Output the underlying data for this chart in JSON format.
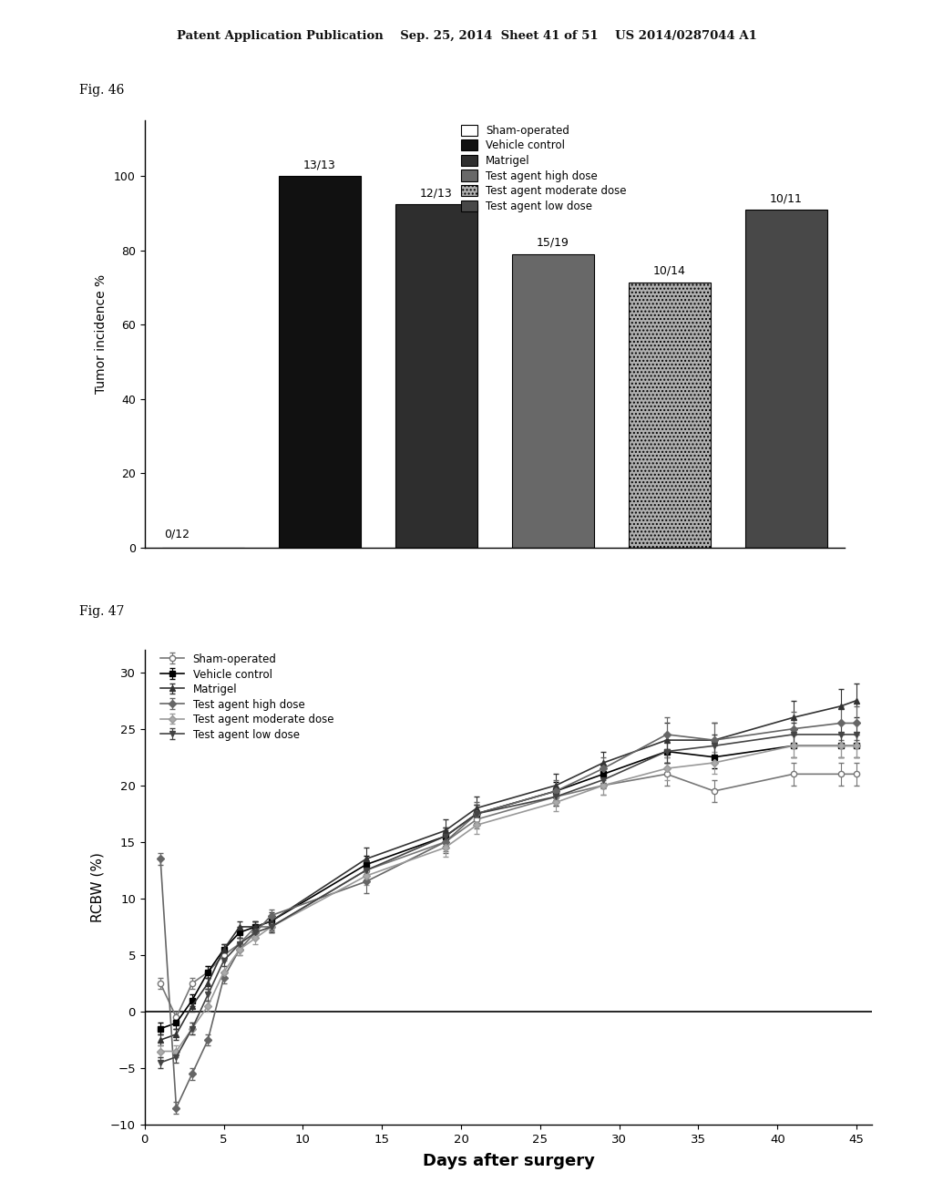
{
  "fig46": {
    "title": "Fig. 46",
    "categories": [
      "Sham-operated",
      "Vehicle control",
      "Matrigel",
      "Test agent high dose",
      "Test agent moderate dose",
      "Test agent low dose"
    ],
    "values": [
      0,
      100,
      92.3,
      78.9,
      71.4,
      90.9
    ],
    "labels": [
      "0/12",
      "13/13",
      "12/13",
      "15/19",
      "10/14",
      "10/11"
    ],
    "bar_colors": [
      "#ffffff",
      "#111111",
      "#2e2e2e",
      "#686868",
      "#b0b0b0",
      "#484848"
    ],
    "bar_edgecolors": [
      "#000000",
      "#000000",
      "#000000",
      "#000000",
      "#000000",
      "#000000"
    ],
    "bar_hatches": [
      null,
      null,
      null,
      null,
      "....",
      null
    ],
    "ylabel": "Tumor incidence %",
    "ylim": [
      0,
      115
    ],
    "yticks": [
      0,
      20,
      40,
      60,
      80,
      100
    ],
    "legend_labels": [
      "Sham-operated",
      "Vehicle control",
      "Matrigel",
      "Test agent high dose",
      "Test agent moderate dose",
      "Test agent low dose"
    ],
    "legend_colors": [
      "#ffffff",
      "#111111",
      "#2e2e2e",
      "#686868",
      "#b0b0b0",
      "#484848"
    ],
    "legend_hatches": [
      null,
      null,
      null,
      null,
      "....",
      null
    ],
    "legend_edgecolors": [
      "#000000",
      "#000000",
      "#000000",
      "#000000",
      "#000000",
      "#000000"
    ]
  },
  "fig47": {
    "title": "Fig. 47",
    "xlabel": "Days after surgery",
    "ylabel": "RCBW (%)",
    "ylim": [
      -10,
      32
    ],
    "yticks": [
      -10,
      -5,
      0,
      5,
      10,
      15,
      20,
      25,
      30
    ],
    "xlim": [
      0,
      46
    ],
    "xticks": [
      0,
      5,
      10,
      15,
      20,
      25,
      30,
      35,
      40,
      45
    ],
    "legend_labels": [
      "Sham-operated",
      "Vehicle control",
      "Matrigel",
      "Test agent high dose",
      "Test agent moderate dose",
      "Test agent low dose"
    ],
    "series": {
      "Sham-operated": {
        "x": [
          1,
          2,
          3,
          4,
          5,
          6,
          7,
          8,
          14,
          19,
          21,
          26,
          29,
          33,
          36,
          41,
          44,
          45
        ],
        "y": [
          2.5,
          -0.5,
          2.5,
          3.5,
          5.0,
          6.0,
          7.5,
          7.5,
          12.5,
          15.0,
          17.0,
          19.0,
          20.0,
          21.0,
          19.5,
          21.0,
          21.0,
          21.0
        ],
        "yerr": [
          0.5,
          0.5,
          0.5,
          0.5,
          0.5,
          0.5,
          0.5,
          0.5,
          0.8,
          0.8,
          0.8,
          0.8,
          0.8,
          1.0,
          1.0,
          1.0,
          1.0,
          1.0
        ]
      },
      "Vehicle control": {
        "x": [
          1,
          2,
          3,
          4,
          5,
          6,
          7,
          8,
          14,
          19,
          21,
          26,
          29,
          33,
          36,
          41,
          44,
          45
        ],
        "y": [
          -1.5,
          -1.0,
          1.0,
          3.5,
          5.5,
          7.0,
          7.5,
          8.0,
          13.0,
          15.5,
          17.5,
          19.5,
          21.0,
          23.0,
          22.5,
          23.5,
          23.5,
          23.5
        ],
        "yerr": [
          0.5,
          0.5,
          0.5,
          0.5,
          0.5,
          0.5,
          0.5,
          0.5,
          0.8,
          0.8,
          0.8,
          0.8,
          0.8,
          1.0,
          1.0,
          1.0,
          1.0,
          1.0
        ]
      },
      "Matrigel": {
        "x": [
          1,
          2,
          3,
          4,
          5,
          6,
          7,
          8,
          14,
          19,
          21,
          26,
          29,
          33,
          36,
          41,
          44,
          45
        ],
        "y": [
          -2.5,
          -2.0,
          0.5,
          2.5,
          5.5,
          7.5,
          7.5,
          8.0,
          13.5,
          16.0,
          18.0,
          20.0,
          22.0,
          24.0,
          24.0,
          26.0,
          27.0,
          27.5
        ],
        "yerr": [
          0.5,
          0.5,
          0.5,
          0.5,
          0.5,
          0.5,
          0.5,
          0.8,
          1.0,
          1.0,
          1.0,
          1.0,
          1.0,
          1.5,
          1.5,
          1.5,
          1.5,
          1.5
        ]
      },
      "Test agent high dose": {
        "x": [
          1,
          2,
          3,
          4,
          5,
          6,
          7,
          8,
          14,
          19,
          21,
          26,
          29,
          33,
          36,
          41,
          44,
          45
        ],
        "y": [
          13.5,
          -8.5,
          -5.5,
          -2.5,
          3.0,
          5.5,
          7.0,
          8.5,
          11.5,
          15.0,
          17.5,
          19.5,
          21.5,
          24.5,
          24.0,
          25.0,
          25.5,
          25.5
        ],
        "yerr": [
          0.5,
          0.5,
          0.5,
          0.5,
          0.5,
          0.5,
          0.5,
          0.5,
          1.0,
          1.0,
          1.0,
          1.0,
          1.0,
          1.5,
          1.5,
          1.5,
          1.5,
          1.5
        ]
      },
      "Test agent moderate dose": {
        "x": [
          1,
          2,
          3,
          4,
          5,
          6,
          7,
          8,
          14,
          19,
          21,
          26,
          29,
          33,
          36,
          41,
          44,
          45
        ],
        "y": [
          -3.5,
          -3.5,
          -1.5,
          0.5,
          3.5,
          5.5,
          6.5,
          7.5,
          12.0,
          14.5,
          16.5,
          18.5,
          20.0,
          21.5,
          22.0,
          23.5,
          23.5,
          23.5
        ],
        "yerr": [
          0.5,
          0.5,
          0.5,
          0.5,
          0.5,
          0.5,
          0.5,
          0.5,
          0.8,
          0.8,
          0.8,
          0.8,
          0.8,
          1.0,
          1.0,
          1.0,
          1.0,
          1.0
        ]
      },
      "Test agent low dose": {
        "x": [
          1,
          2,
          3,
          4,
          5,
          6,
          7,
          8,
          14,
          19,
          21,
          26,
          29,
          33,
          36,
          41,
          44,
          45
        ],
        "y": [
          -4.5,
          -4.0,
          -1.5,
          1.5,
          4.5,
          6.0,
          7.0,
          7.5,
          12.5,
          15.5,
          17.5,
          19.0,
          20.5,
          23.0,
          23.5,
          24.5,
          24.5,
          24.5
        ],
        "yerr": [
          0.5,
          0.5,
          0.5,
          0.5,
          0.5,
          0.5,
          0.5,
          0.5,
          0.8,
          0.8,
          0.8,
          0.8,
          0.8,
          1.0,
          1.0,
          1.0,
          1.0,
          1.0
        ]
      }
    }
  },
  "header_line1": "Patent Application Publication",
  "header_line2": "Sep. 25, 2014  Sheet 41 of 51",
  "header_line3": "US 2014/0287044 A1",
  "bg_color": "#ffffff"
}
